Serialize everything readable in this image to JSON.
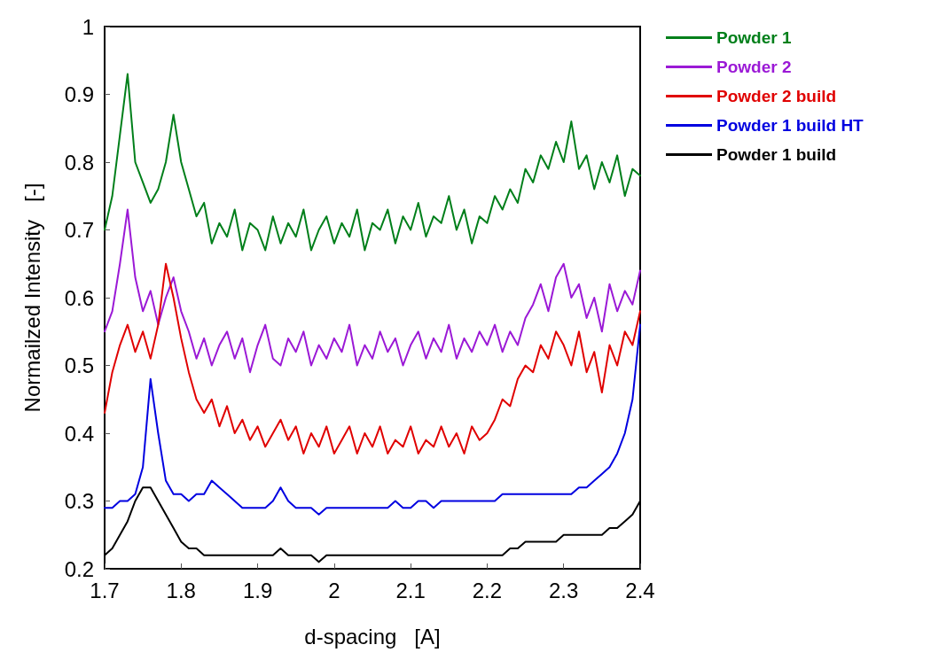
{
  "chart_data": {
    "type": "line",
    "xlabel": "d-spacing   [A]",
    "ylabel": "Normailzed Intensity   [-]",
    "x": [
      1.7,
      1.71,
      1.72,
      1.73,
      1.74,
      1.75,
      1.76,
      1.77,
      1.78,
      1.79,
      1.8,
      1.81,
      1.82,
      1.83,
      1.84,
      1.85,
      1.86,
      1.87,
      1.88,
      1.89,
      1.9,
      1.91,
      1.92,
      1.93,
      1.94,
      1.95,
      1.96,
      1.97,
      1.98,
      1.99,
      2.0,
      2.01,
      2.02,
      2.03,
      2.04,
      2.05,
      2.06,
      2.07,
      2.08,
      2.09,
      2.1,
      2.11,
      2.12,
      2.13,
      2.14,
      2.15,
      2.16,
      2.17,
      2.18,
      2.19,
      2.2,
      2.21,
      2.22,
      2.23,
      2.24,
      2.25,
      2.26,
      2.27,
      2.28,
      2.29,
      2.3,
      2.31,
      2.32,
      2.33,
      2.34,
      2.35,
      2.36,
      2.37,
      2.38,
      2.39,
      2.4
    ],
    "series": [
      {
        "name": "Powder 1",
        "color": "#007f1a",
        "values": [
          0.7,
          0.75,
          0.84,
          0.93,
          0.8,
          0.77,
          0.74,
          0.76,
          0.8,
          0.87,
          0.8,
          0.76,
          0.72,
          0.74,
          0.68,
          0.71,
          0.69,
          0.73,
          0.67,
          0.71,
          0.7,
          0.67,
          0.72,
          0.68,
          0.71,
          0.69,
          0.73,
          0.67,
          0.7,
          0.72,
          0.68,
          0.71,
          0.69,
          0.73,
          0.67,
          0.71,
          0.7,
          0.73,
          0.68,
          0.72,
          0.7,
          0.74,
          0.69,
          0.72,
          0.71,
          0.75,
          0.7,
          0.73,
          0.68,
          0.72,
          0.71,
          0.75,
          0.73,
          0.76,
          0.74,
          0.79,
          0.77,
          0.81,
          0.79,
          0.83,
          0.8,
          0.86,
          0.79,
          0.81,
          0.76,
          0.8,
          0.77,
          0.81,
          0.75,
          0.79,
          0.78
        ]
      },
      {
        "name": "Powder 2",
        "color": "#9b19d6",
        "values": [
          0.55,
          0.58,
          0.65,
          0.73,
          0.63,
          0.58,
          0.61,
          0.56,
          0.6,
          0.63,
          0.58,
          0.55,
          0.51,
          0.54,
          0.5,
          0.53,
          0.55,
          0.51,
          0.54,
          0.49,
          0.53,
          0.56,
          0.51,
          0.5,
          0.54,
          0.52,
          0.55,
          0.5,
          0.53,
          0.51,
          0.54,
          0.52,
          0.56,
          0.5,
          0.53,
          0.51,
          0.55,
          0.52,
          0.54,
          0.5,
          0.53,
          0.55,
          0.51,
          0.54,
          0.52,
          0.56,
          0.51,
          0.54,
          0.52,
          0.55,
          0.53,
          0.56,
          0.52,
          0.55,
          0.53,
          0.57,
          0.59,
          0.62,
          0.58,
          0.63,
          0.65,
          0.6,
          0.62,
          0.57,
          0.6,
          0.55,
          0.62,
          0.58,
          0.61,
          0.59,
          0.64
        ]
      },
      {
        "name": "Powder 2 build",
        "color": "#e00000",
        "values": [
          0.43,
          0.49,
          0.53,
          0.56,
          0.52,
          0.55,
          0.51,
          0.56,
          0.65,
          0.6,
          0.54,
          0.49,
          0.45,
          0.43,
          0.45,
          0.41,
          0.44,
          0.4,
          0.42,
          0.39,
          0.41,
          0.38,
          0.4,
          0.42,
          0.39,
          0.41,
          0.37,
          0.4,
          0.38,
          0.41,
          0.37,
          0.39,
          0.41,
          0.37,
          0.4,
          0.38,
          0.41,
          0.37,
          0.39,
          0.38,
          0.41,
          0.37,
          0.39,
          0.38,
          0.41,
          0.38,
          0.4,
          0.37,
          0.41,
          0.39,
          0.4,
          0.42,
          0.45,
          0.44,
          0.48,
          0.5,
          0.49,
          0.53,
          0.51,
          0.55,
          0.53,
          0.5,
          0.55,
          0.49,
          0.52,
          0.46,
          0.53,
          0.5,
          0.55,
          0.53,
          0.58
        ]
      },
      {
        "name": "Powder 1 build HT",
        "color": "#0000e0",
        "values": [
          0.29,
          0.29,
          0.3,
          0.3,
          0.31,
          0.35,
          0.48,
          0.4,
          0.33,
          0.31,
          0.31,
          0.3,
          0.31,
          0.31,
          0.33,
          0.32,
          0.31,
          0.3,
          0.29,
          0.29,
          0.29,
          0.29,
          0.3,
          0.32,
          0.3,
          0.29,
          0.29,
          0.29,
          0.28,
          0.29,
          0.29,
          0.29,
          0.29,
          0.29,
          0.29,
          0.29,
          0.29,
          0.29,
          0.3,
          0.29,
          0.29,
          0.3,
          0.3,
          0.29,
          0.3,
          0.3,
          0.3,
          0.3,
          0.3,
          0.3,
          0.3,
          0.3,
          0.31,
          0.31,
          0.31,
          0.31,
          0.31,
          0.31,
          0.31,
          0.31,
          0.31,
          0.31,
          0.32,
          0.32,
          0.33,
          0.34,
          0.35,
          0.37,
          0.4,
          0.45,
          0.56
        ]
      },
      {
        "name": "Powder 1 build",
        "color": "#000000",
        "values": [
          0.22,
          0.23,
          0.25,
          0.27,
          0.3,
          0.32,
          0.32,
          0.3,
          0.28,
          0.26,
          0.24,
          0.23,
          0.23,
          0.22,
          0.22,
          0.22,
          0.22,
          0.22,
          0.22,
          0.22,
          0.22,
          0.22,
          0.22,
          0.23,
          0.22,
          0.22,
          0.22,
          0.22,
          0.21,
          0.22,
          0.22,
          0.22,
          0.22,
          0.22,
          0.22,
          0.22,
          0.22,
          0.22,
          0.22,
          0.22,
          0.22,
          0.22,
          0.22,
          0.22,
          0.22,
          0.22,
          0.22,
          0.22,
          0.22,
          0.22,
          0.22,
          0.22,
          0.22,
          0.23,
          0.23,
          0.24,
          0.24,
          0.24,
          0.24,
          0.24,
          0.25,
          0.25,
          0.25,
          0.25,
          0.25,
          0.25,
          0.26,
          0.26,
          0.27,
          0.28,
          0.3
        ]
      }
    ],
    "xlim": [
      1.7,
      2.4
    ],
    "xticks": [
      1.7,
      1.8,
      1.9,
      2,
      2.1,
      2.2,
      2.3,
      2.4
    ],
    "ylim": [
      0.2,
      1
    ],
    "yticks": [
      0.2,
      0.3,
      0.4,
      0.5,
      0.6,
      0.7,
      0.8,
      0.9,
      1
    ],
    "grid": false,
    "legend": "top right",
    "marker": "none",
    "line_style": "solid"
  }
}
